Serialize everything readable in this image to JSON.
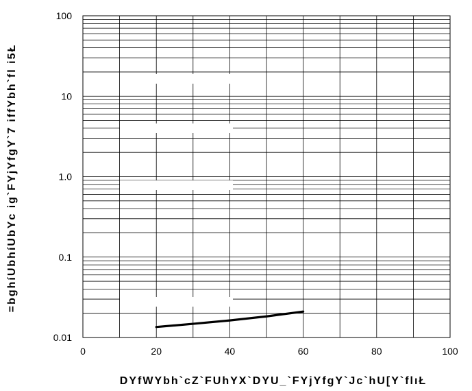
{
  "chart_data": {
    "type": "line",
    "title": "",
    "xlabel": "DYfWYbh`cZ`FUhYX`DYU_`FYjYfgY`Jc`hU[Y`flıŁ",
    "ylabel": "=bghíUbhíUbYc ig`FYjYfgY`7 iffYbh`fl i5Ł",
    "x_ticks": [
      "0",
      "20",
      "40",
      "60",
      "80",
      "100"
    ],
    "y_ticks": [
      "0.01",
      "0.1",
      "1.0",
      "10",
      "100"
    ],
    "xlim": [
      0,
      100
    ],
    "ylim": [
      0.01,
      100
    ],
    "y_scale": "log",
    "grid": true,
    "series": [
      {
        "color": "#000000",
        "x": [
          20,
          30,
          40,
          50,
          60
        ],
        "y": [
          0.0135,
          0.0148,
          0.0163,
          0.0183,
          0.021
        ]
      }
    ]
  }
}
